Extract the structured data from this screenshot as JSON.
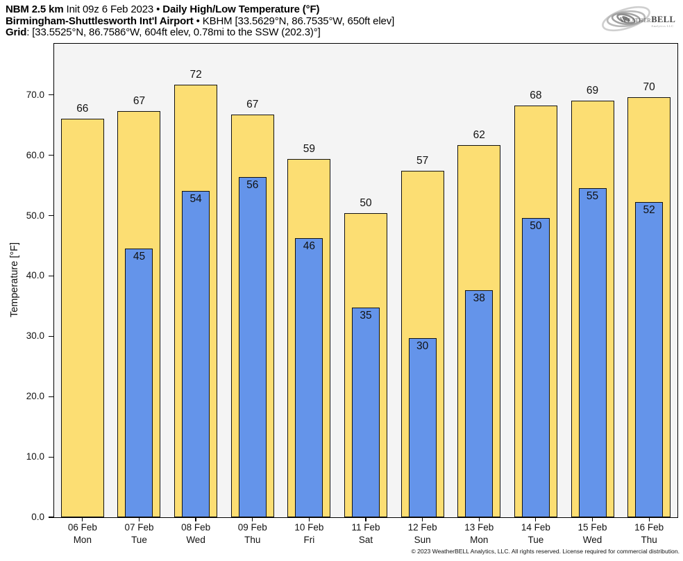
{
  "header": {
    "line1_bold1": "NBM 2.5 km",
    "line1_reg": " Init 09z 6 Feb 2023 • ",
    "line1_bold2": "Daily High/Low Temperature (°F)",
    "line2_bold": "Birmingham-Shuttlesworth Int'l Airport",
    "line2_reg": " • KBHM [33.5629°N, 86.7535°W, 650ft elev]",
    "line3_bold": "Grid",
    "line3_reg": ": [33.5525°N, 86.7586°W, 604ft elev, 0.78mi to the SSW (202.3)°]"
  },
  "logo": {
    "weather": "Weather",
    "bell": "BELL",
    "sub": "Analytics LLC"
  },
  "footer": {
    "copyright": "© 2023 WeatherBELL Analytics, LLC. All rights reserved. License required for commercial distribution."
  },
  "chart_data": {
    "type": "bar",
    "title": "NBM 2.5 km Init 09z 6 Feb 2023 • Daily High/Low Temperature (°F)",
    "subtitle": "Birmingham-Shuttlesworth Int'l Airport • KBHM",
    "ylabel": "Temperature [°F]",
    "xlabel": "",
    "grid": false,
    "legend": "none",
    "ylim": [
      0,
      78.5
    ],
    "yticks": [
      "0.0",
      "10.0",
      "20.0",
      "30.0",
      "40.0",
      "50.0",
      "60.0",
      "70.0"
    ],
    "categories": [
      {
        "date": "06 Feb",
        "day": "Mon"
      },
      {
        "date": "07 Feb",
        "day": "Tue"
      },
      {
        "date": "08 Feb",
        "day": "Wed"
      },
      {
        "date": "09 Feb",
        "day": "Thu"
      },
      {
        "date": "10 Feb",
        "day": "Fri"
      },
      {
        "date": "11 Feb",
        "day": "Sat"
      },
      {
        "date": "12 Feb",
        "day": "Sun"
      },
      {
        "date": "13 Feb",
        "day": "Mon"
      },
      {
        "date": "14 Feb",
        "day": "Tue"
      },
      {
        "date": "15 Feb",
        "day": "Wed"
      },
      {
        "date": "16 Feb",
        "day": "Thu"
      }
    ],
    "series": [
      {
        "name": "Daily High",
        "color": "#fcde73",
        "values": [
          66,
          67,
          72,
          67,
          59,
          50,
          57,
          62,
          68,
          69,
          70
        ],
        "values_exact": [
          66.1,
          67.3,
          71.7,
          66.8,
          59.4,
          50.4,
          57.4,
          61.7,
          68.3,
          69.1,
          69.6
        ]
      },
      {
        "name": "Daily Low",
        "color": "#6494ea",
        "values": [
          null,
          45,
          54,
          56,
          46,
          35,
          30,
          38,
          50,
          55,
          52
        ],
        "values_exact": [
          null,
          44.6,
          54.1,
          56.4,
          46.3,
          34.8,
          29.7,
          37.6,
          49.6,
          54.6,
          52.3
        ]
      }
    ]
  }
}
